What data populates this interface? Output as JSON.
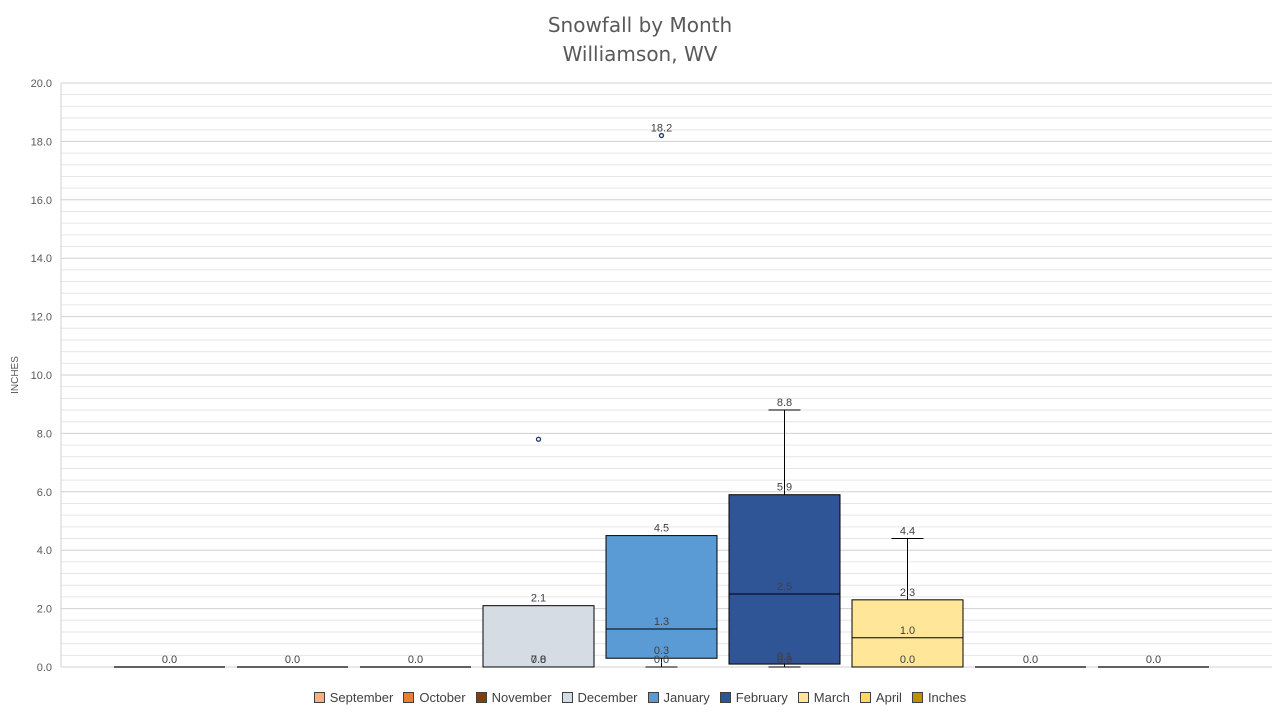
{
  "chart_data": {
    "type": "box",
    "title": "Snowfall by Month",
    "subtitle": "Williamson, WV",
    "ylabel": "INCHES",
    "ylim": [
      0,
      20
    ],
    "yticks": [
      "0.0",
      "2.0",
      "4.0",
      "6.0",
      "8.0",
      "10.0",
      "12.0",
      "14.0",
      "16.0",
      "18.0",
      "20.0"
    ],
    "grid": true,
    "legend_position": "bottom",
    "legend": [
      {
        "name": "September",
        "color": "#f4b183"
      },
      {
        "name": "October",
        "color": "#ed7d31"
      },
      {
        "name": "November",
        "color": "#843c0c"
      },
      {
        "name": "December",
        "color": "#d6dce4"
      },
      {
        "name": "January",
        "color": "#5b9bd5"
      },
      {
        "name": "February",
        "color": "#2f5597"
      },
      {
        "name": "March",
        "color": "#ffe699"
      },
      {
        "name": "April",
        "color": "#ffd966"
      },
      {
        "name": "Inches",
        "color": "#bf9000"
      }
    ],
    "series": [
      {
        "name": "September",
        "color": "#f4b183",
        "min": 0.0,
        "q1": 0.0,
        "median": 0.0,
        "q3": 0.0,
        "max": 0.0,
        "outliers": [],
        "labels": [
          "0.0"
        ]
      },
      {
        "name": "October",
        "color": "#ed7d31",
        "min": 0.0,
        "q1": 0.0,
        "median": 0.0,
        "q3": 0.0,
        "max": 0.0,
        "outliers": [],
        "labels": [
          "0.0"
        ]
      },
      {
        "name": "November",
        "color": "#843c0c",
        "min": 0.0,
        "q1": 0.0,
        "median": 0.0,
        "q3": 0.0,
        "max": 0.0,
        "outliers": [],
        "labels": [
          "0.0"
        ]
      },
      {
        "name": "December",
        "color": "#d6dce4",
        "min": 0.0,
        "q1": 0.0,
        "median": 0.0,
        "q3": 2.1,
        "max": 2.1,
        "outliers": [
          7.8
        ],
        "labels": [
          "2.1",
          "0.0",
          "7.8"
        ]
      },
      {
        "name": "January",
        "color": "#5b9bd5",
        "min": 0.0,
        "q1": 0.3,
        "median": 1.3,
        "q3": 4.5,
        "max": 4.5,
        "outliers": [
          18.2
        ],
        "labels": [
          "4.5",
          "1.3",
          "0.3",
          "0.0",
          "18.2"
        ]
      },
      {
        "name": "February",
        "color": "#2f5597",
        "min": 0.0,
        "q1": 0.1,
        "median": 2.5,
        "q3": 5.9,
        "max": 8.8,
        "outliers": [],
        "labels": [
          "8.8",
          "5.9",
          "2.5",
          "0.1",
          "0.0"
        ]
      },
      {
        "name": "March",
        "color": "#ffe699",
        "min": 0.0,
        "q1": 0.0,
        "median": 1.0,
        "q3": 2.3,
        "max": 4.4,
        "outliers": [],
        "labels": [
          "4.4",
          "2.3",
          "1.0",
          "0.0"
        ]
      },
      {
        "name": "April",
        "color": "#ffd966",
        "min": 0.0,
        "q1": 0.0,
        "median": 0.0,
        "q3": 0.0,
        "max": 0.0,
        "outliers": [],
        "labels": [
          "0.0"
        ]
      },
      {
        "name": "Inches",
        "color": "#bf9000",
        "min": 0.0,
        "q1": 0.0,
        "median": 0.0,
        "q3": 0.0,
        "max": 0.0,
        "outliers": [],
        "labels": [
          "0.0"
        ]
      }
    ]
  }
}
